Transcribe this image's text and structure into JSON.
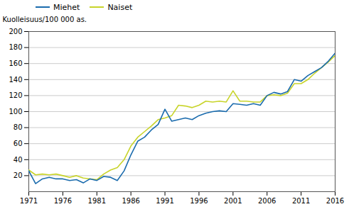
{
  "chart_data": {
    "type": "line",
    "x": [
      1971,
      1972,
      1973,
      1974,
      1975,
      1976,
      1977,
      1978,
      1979,
      1980,
      1981,
      1982,
      1983,
      1984,
      1985,
      1986,
      1987,
      1988,
      1989,
      1990,
      1991,
      1992,
      1993,
      1994,
      1995,
      1996,
      1997,
      1998,
      1999,
      2000,
      2001,
      2002,
      2003,
      2004,
      2005,
      2006,
      2007,
      2008,
      2009,
      2010,
      2011,
      2012,
      2013,
      2014,
      2015,
      2016
    ],
    "series": [
      {
        "name": "Miehet",
        "color": "#1a6bad",
        "values": [
          26,
          10,
          16,
          18,
          16,
          16,
          14,
          15,
          11,
          16,
          14,
          19,
          18,
          14,
          26,
          46,
          63,
          68,
          77,
          84,
          103,
          88,
          90,
          92,
          90,
          95,
          98,
          100,
          101,
          100,
          110,
          109,
          108,
          110,
          108,
          120,
          124,
          122,
          125,
          140,
          138,
          145,
          150,
          155,
          163,
          173
        ]
      },
      {
        "name": "Naiset",
        "color": "#c8d42a",
        "values": [
          27,
          21,
          22,
          21,
          22,
          20,
          18,
          20,
          17,
          16,
          15,
          22,
          27,
          30,
          40,
          57,
          68,
          75,
          82,
          90,
          92,
          95,
          108,
          107,
          105,
          108,
          113,
          112,
          113,
          112,
          126,
          113,
          113,
          112,
          112,
          120,
          121,
          120,
          123,
          135,
          135,
          140,
          148,
          155,
          162,
          170
        ]
      }
    ],
    "ylabel": "Kuolleisuus/100 000 as.",
    "xlim": [
      1971,
      2016
    ],
    "xticks": [
      1971,
      1976,
      1981,
      1986,
      1991,
      1996,
      2001,
      2006,
      2011,
      2016
    ],
    "ylim": [
      0,
      200
    ],
    "yticks": [
      20,
      40,
      60,
      80,
      100,
      120,
      140,
      160,
      180,
      200
    ],
    "grid": true,
    "legend": "upper left"
  }
}
